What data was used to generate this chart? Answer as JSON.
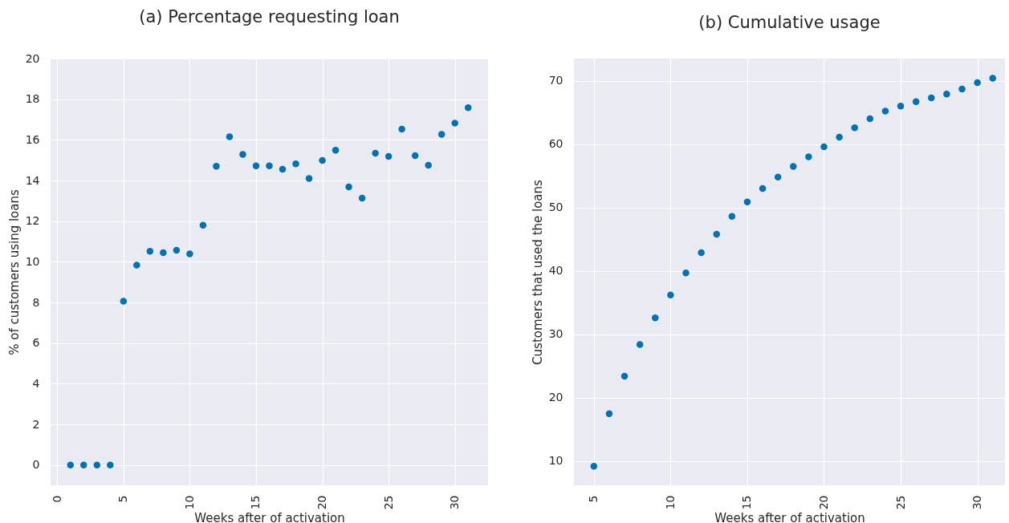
{
  "chart_data": [
    {
      "type": "scatter",
      "title": "(a) Percentage requesting loan",
      "xlabel": "Weeks after of activation",
      "ylabel": "% of customers using loans",
      "x": [
        1,
        2,
        3,
        4,
        5,
        6,
        7,
        8,
        9,
        10,
        11,
        12,
        13,
        14,
        15,
        16,
        17,
        18,
        19,
        20,
        21,
        22,
        23,
        24,
        25,
        26,
        27,
        28,
        29,
        30,
        31
      ],
      "series": [
        {
          "color": "#0072b2",
          "values": [
            0,
            0,
            0,
            0,
            8.06,
            9.84,
            10.52,
            10.45,
            10.57,
            10.39,
            11.8,
            14.7,
            16.15,
            15.28,
            14.72,
            14.72,
            14.55,
            14.82,
            14.1,
            14.99,
            15.49,
            13.68,
            13.13,
            15.34,
            15.18,
            16.53,
            15.22,
            14.75,
            16.27,
            16.82,
            17.58
          ]
        }
      ],
      "xlim": [
        -0.5,
        32.5
      ],
      "ylim": [
        -1,
        20
      ],
      "xticks": [
        0,
        5,
        10,
        15,
        20,
        25,
        30
      ],
      "yticks": [
        0,
        2,
        4,
        6,
        8,
        10,
        12,
        14,
        16,
        18,
        20
      ],
      "grid": true,
      "marker": "circle"
    },
    {
      "type": "scatter",
      "title": "(b) Cumulative usage",
      "xlabel": "Weeks after of activation",
      "ylabel": "Customers that used the loans",
      "x": [
        5,
        6,
        7,
        8,
        9,
        10,
        11,
        12,
        13,
        14,
        15,
        16,
        17,
        18,
        19,
        20,
        21,
        22,
        23,
        24,
        25,
        26,
        27,
        28,
        29,
        30,
        31
      ],
      "series": [
        {
          "color": "#0072b2",
          "values": [
            9.2,
            17.5,
            23.4,
            28.4,
            32.6,
            36.2,
            39.7,
            42.9,
            45.8,
            48.6,
            50.9,
            53.0,
            54.8,
            56.5,
            58.0,
            59.6,
            61.1,
            62.6,
            64.0,
            65.2,
            66.0,
            66.7,
            67.3,
            67.9,
            68.7,
            69.7,
            70.4
          ]
        }
      ],
      "xlim": [
        3.7,
        31.8
      ],
      "ylim": [
        6.2,
        73.5
      ],
      "xticks": [
        5,
        10,
        15,
        20,
        25,
        30
      ],
      "yticks": [
        10,
        20,
        30,
        40,
        50,
        60,
        70
      ],
      "grid": true,
      "marker": "circle"
    }
  ]
}
